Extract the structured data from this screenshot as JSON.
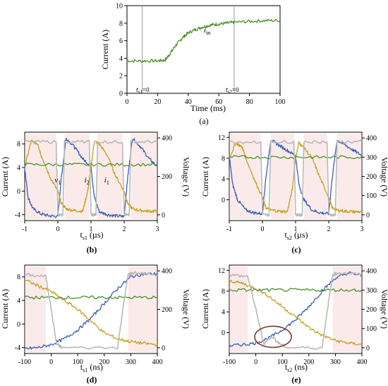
{
  "colors": {
    "green": "#4d8f2a",
    "blue": "#3a5fb5",
    "orange": "#c8a01e",
    "gray": "#b8b8b8",
    "pink": "#f2c4c4",
    "oval": "#7a3b2a",
    "cursor": "#9a9a9a",
    "tick_red": "#8b1a1a"
  },
  "chart_data": [
    {
      "panel_label": "(a)",
      "type": "line",
      "xlabel": "Time (ms)",
      "ylabel": "Current (A)",
      "xlim": [
        0,
        100
      ],
      "ylim": [
        0,
        10
      ],
      "xticks": [
        0,
        20,
        40,
        60,
        80,
        100
      ],
      "yticks": [
        0,
        2,
        4,
        6,
        8,
        10
      ],
      "annotations": {
        "series_label": "i",
        "series_sub": "in",
        "cursor1": "t",
        "cursor1_sub": "s1",
        "cursor1_eq": "=0",
        "cursor2": "t",
        "cursor2_sub": "s2",
        "cursor2_eq": "=0"
      },
      "cursors_x": [
        10,
        70
      ],
      "series": [
        {
          "x": [
            0,
            10,
            20,
            25,
            28,
            32,
            36,
            40,
            45,
            50,
            55,
            60,
            65,
            70,
            80,
            90,
            100
          ],
          "values": [
            3.7,
            3.7,
            3.7,
            3.8,
            4.5,
            5.5,
            6.3,
            6.9,
            7.3,
            7.6,
            7.8,
            7.9,
            8.0,
            8.1,
            8.2,
            8.3,
            8.3
          ]
        }
      ]
    },
    {
      "panel_label": "(b)",
      "type": "line",
      "xlabel_main": "t",
      "xlabel_sub": "s1",
      "xlabel_unit": " (µs)",
      "ylabel": "Current (A)",
      "y2label": "Voltage (V)",
      "xlim": [
        -1,
        3
      ],
      "ylim": [
        -5,
        10
      ],
      "y2lim": [
        -30,
        430
      ],
      "xticks": [
        -1,
        0,
        1,
        2,
        3
      ],
      "yticks": [
        -4,
        0,
        4,
        8
      ],
      "y2ticks": [
        0,
        200,
        400
      ],
      "annotations": [
        {
          "main": "v",
          "sub": "1",
          "x": -0.1,
          "y": 1.5
        },
        {
          "main": "i",
          "sub": "2",
          "x": 0.8,
          "y": 1.5
        },
        {
          "main": "i",
          "sub": "1",
          "x": 1.4,
          "y": 1.5
        }
      ],
      "series": [
        {
          "name": "",
          "axis": "left",
          "color": "blue",
          "x": [
            -1,
            -0.9,
            -0.75,
            -0.5,
            -0.25,
            0,
            0.1,
            0.25,
            0.5,
            0.75,
            1.0,
            1.1,
            1.25,
            1.5,
            1.75,
            2.0,
            2.1,
            2.25,
            2.5,
            2.75,
            3.0
          ],
          "values": [
            4.0,
            -1.0,
            -3.0,
            -3.9,
            -4.2,
            -4.3,
            2.0,
            9.0,
            7.5,
            5.5,
            4.2,
            -1.0,
            -3.5,
            -4.0,
            -4.2,
            -4.3,
            2.0,
            9.0,
            7.5,
            5.5,
            4.2
          ]
        },
        {
          "name": "",
          "axis": "left",
          "color": "orange",
          "x": [
            -1,
            -0.8,
            -0.6,
            -0.5,
            -0.25,
            0,
            0.1,
            0.25,
            0.5,
            0.75,
            0.9,
            1.0,
            1.1,
            1.25,
            1.5,
            1.75,
            2.0,
            2.1,
            2.25,
            2.5,
            2.75,
            3.0
          ],
          "values": [
            4.0,
            8.5,
            8.0,
            6.0,
            2.5,
            0.0,
            -2.0,
            -3.0,
            -3.3,
            -3.4,
            0.0,
            4.0,
            8.5,
            8.0,
            6.0,
            2.5,
            0.0,
            -2.0,
            -3.0,
            -3.3,
            -3.4,
            -3.4
          ]
        },
        {
          "name": "",
          "axis": "left",
          "color": "green",
          "x": [
            -1,
            0,
            1,
            2,
            3
          ],
          "values": [
            4.5,
            4.5,
            4.5,
            4.5,
            4.5
          ]
        },
        {
          "name": "",
          "axis": "right",
          "color": "gray",
          "x": [
            -1,
            -0.05,
            0.0,
            0.15,
            0.2,
            0.95,
            1.0,
            1.15,
            1.2,
            1.95,
            2.0,
            2.15,
            2.2,
            3.0
          ],
          "values": [
            380,
            380,
            0,
            0,
            380,
            380,
            0,
            0,
            380,
            380,
            0,
            0,
            380,
            380
          ]
        }
      ]
    },
    {
      "panel_label": "(c)",
      "type": "line",
      "xlabel_main": "t",
      "xlabel_sub": "s2",
      "xlabel_unit": " (µs)",
      "ylabel": "Current (A)",
      "y2label": "Voltage (V)",
      "xlim": [
        -1,
        3
      ],
      "ylim": [
        -4,
        13
      ],
      "y2lim": [
        -30,
        430
      ],
      "xticks": [
        -1,
        0,
        1,
        2,
        3
      ],
      "yticks": [
        0,
        4,
        8,
        12
      ],
      "y2ticks": [
        0,
        100,
        200,
        300,
        400
      ],
      "series": [
        {
          "name": "",
          "axis": "left",
          "color": "blue",
          "x": [
            -1,
            -0.9,
            -0.75,
            -0.5,
            -0.25,
            0,
            0.1,
            0.25,
            0.5,
            0.75,
            1.0,
            1.1,
            1.25,
            1.5,
            1.75,
            2.0,
            2.1,
            2.25,
            2.5,
            2.75,
            3.0
          ],
          "values": [
            8.5,
            3.0,
            0.0,
            -2.0,
            -2.5,
            -2.7,
            4.0,
            11.5,
            10.5,
            9.5,
            8.5,
            3.0,
            0.0,
            -2.0,
            -2.5,
            -2.7,
            4.0,
            11.5,
            10.5,
            9.5,
            8.5
          ]
        },
        {
          "name": "",
          "axis": "left",
          "color": "orange",
          "x": [
            -1,
            -0.8,
            -0.6,
            -0.5,
            -0.25,
            0,
            0.1,
            0.25,
            0.5,
            0.75,
            0.9,
            1.0,
            1.1,
            1.25,
            1.5,
            1.75,
            2.0,
            2.1,
            2.25,
            2.5,
            2.75,
            3.0
          ],
          "values": [
            8.0,
            11.0,
            10.0,
            8.0,
            4.0,
            0.5,
            -1.5,
            -2.0,
            -2.2,
            -2.3,
            2.0,
            8.0,
            11.0,
            10.0,
            8.0,
            4.0,
            0.5,
            -1.5,
            -2.0,
            -2.2,
            -2.3,
            -2.3
          ]
        },
        {
          "name": "",
          "axis": "left",
          "color": "green",
          "x": [
            -1,
            0,
            1,
            2,
            3
          ],
          "values": [
            8.2,
            8.2,
            8.2,
            8.2,
            8.2
          ]
        },
        {
          "name": "",
          "axis": "right",
          "color": "gray",
          "x": [
            -1,
            -0.05,
            0.0,
            0.2,
            0.25,
            0.95,
            1.0,
            1.2,
            1.25,
            1.95,
            2.0,
            2.2,
            2.25,
            3.0
          ],
          "values": [
            380,
            380,
            0,
            0,
            380,
            380,
            0,
            0,
            380,
            380,
            0,
            0,
            380,
            380
          ]
        }
      ]
    },
    {
      "panel_label": "(d)",
      "type": "line",
      "xlabel_main": "t",
      "xlabel_sub": "s1",
      "xlabel_unit": " (ns)",
      "ylabel": "Current (A)",
      "y2label": "Voltage (V)",
      "xlim": [
        -100,
        400
      ],
      "ylim": [
        -5,
        10
      ],
      "y2lim": [
        -30,
        430
      ],
      "xticks": [
        -100,
        0,
        100,
        200,
        300,
        400
      ],
      "yticks": [
        -4,
        0,
        4,
        8
      ],
      "y2ticks": [
        0,
        200,
        400
      ],
      "series": [
        {
          "name": "",
          "axis": "left",
          "color": "blue",
          "x": [
            -100,
            -50,
            0,
            50,
            100,
            150,
            200,
            250,
            300,
            350,
            400
          ],
          "values": [
            -4.2,
            -4.0,
            -3.5,
            -2.5,
            -1.0,
            1.0,
            3.5,
            6.0,
            8.0,
            8.5,
            8.5
          ]
        },
        {
          "name": "",
          "axis": "left",
          "color": "orange",
          "x": [
            -100,
            -50,
            0,
            50,
            100,
            150,
            200,
            250,
            300,
            350,
            400
          ],
          "values": [
            7.5,
            6.5,
            5.5,
            4.0,
            2.5,
            0.5,
            -1.5,
            -2.5,
            -3.0,
            -3.3,
            -3.5
          ]
        },
        {
          "name": "",
          "axis": "left",
          "color": "green",
          "x": [
            -100,
            0,
            100,
            200,
            300,
            400
          ],
          "values": [
            4.5,
            4.5,
            4.5,
            4.5,
            4.5,
            4.5
          ]
        },
        {
          "name": "",
          "axis": "right",
          "color": "gray",
          "x": [
            -100,
            -20,
            0,
            20,
            40,
            250,
            270,
            290,
            310,
            400
          ],
          "values": [
            380,
            370,
            200,
            20,
            0,
            0,
            200,
            380,
            390,
            380
          ]
        }
      ]
    },
    {
      "panel_label": "(e)",
      "type": "line",
      "xlabel_main": "t",
      "xlabel_sub": "s2",
      "xlabel_unit": " (ns)",
      "ylabel": "Current (A)",
      "y2label": "Voltage (V)",
      "xlim": [
        -100,
        400
      ],
      "ylim": [
        -4,
        13
      ],
      "y2lim": [
        -30,
        430
      ],
      "xticks": [
        -100,
        0,
        100,
        200,
        300,
        400
      ],
      "yticks": [
        0,
        4,
        8,
        12
      ],
      "y2ticks": [
        0,
        100,
        200,
        300,
        400
      ],
      "series": [
        {
          "name": "",
          "axis": "left",
          "color": "blue",
          "x": [
            -100,
            -50,
            0,
            50,
            100,
            150,
            200,
            250,
            300,
            350,
            400
          ],
          "values": [
            -2.5,
            -2.3,
            -2.0,
            -1.0,
            0.5,
            2.5,
            5.0,
            8.0,
            10.5,
            11.5,
            11.0
          ]
        },
        {
          "name": "",
          "axis": "left",
          "color": "orange",
          "x": [
            -100,
            -50,
            0,
            50,
            100,
            150,
            200,
            250,
            300,
            350,
            400
          ],
          "values": [
            10.0,
            9.5,
            8.5,
            7.0,
            5.0,
            3.0,
            1.0,
            -0.5,
            -1.5,
            -2.0,
            -2.3
          ]
        },
        {
          "name": "",
          "axis": "left",
          "color": "green",
          "x": [
            -100,
            0,
            100,
            200,
            300,
            400
          ],
          "values": [
            8.2,
            8.2,
            8.2,
            8.2,
            8.2,
            8.2
          ]
        },
        {
          "name": "",
          "axis": "right",
          "color": "gray",
          "x": [
            -100,
            -30,
            0,
            30,
            60,
            90,
            120,
            250,
            270,
            290,
            310,
            400
          ],
          "values": [
            380,
            370,
            200,
            20,
            60,
            20,
            0,
            0,
            200,
            380,
            390,
            380
          ]
        }
      ],
      "oval_center": {
        "x": 65,
        "y": -0.8
      }
    }
  ]
}
